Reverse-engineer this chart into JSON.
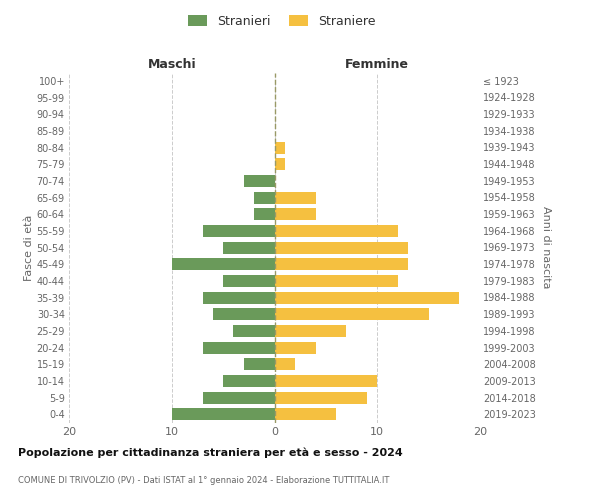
{
  "age_groups": [
    "0-4",
    "5-9",
    "10-14",
    "15-19",
    "20-24",
    "25-29",
    "30-34",
    "35-39",
    "40-44",
    "45-49",
    "50-54",
    "55-59",
    "60-64",
    "65-69",
    "70-74",
    "75-79",
    "80-84",
    "85-89",
    "90-94",
    "95-99",
    "100+"
  ],
  "birth_years": [
    "2019-2023",
    "2014-2018",
    "2009-2013",
    "2004-2008",
    "1999-2003",
    "1994-1998",
    "1989-1993",
    "1984-1988",
    "1979-1983",
    "1974-1978",
    "1969-1973",
    "1964-1968",
    "1959-1963",
    "1954-1958",
    "1949-1953",
    "1944-1948",
    "1939-1943",
    "1934-1938",
    "1929-1933",
    "1924-1928",
    "≤ 1923"
  ],
  "males": [
    10,
    7,
    5,
    3,
    7,
    4,
    6,
    7,
    5,
    10,
    5,
    7,
    2,
    2,
    3,
    0,
    0,
    0,
    0,
    0,
    0
  ],
  "females": [
    6,
    9,
    10,
    2,
    4,
    7,
    15,
    18,
    12,
    13,
    13,
    12,
    4,
    4,
    0,
    1,
    1,
    0,
    0,
    0,
    0
  ],
  "male_color": "#6a9a5a",
  "female_color": "#f5c040",
  "bg_color": "#ffffff",
  "grid_color": "#cccccc",
  "title": "Popolazione per cittadinanza straniera per età e sesso - 2024",
  "subtitle": "COMUNE DI TRIVOLZIO (PV) - Dati ISTAT al 1° gennaio 2024 - Elaborazione TUTTITALIA.IT",
  "xlabel_left": "Maschi",
  "xlabel_right": "Femmine",
  "ylabel_left": "Fasce di età",
  "ylabel_right": "Anni di nascita",
  "legend_male": "Stranieri",
  "legend_female": "Straniere",
  "xlim": 20
}
